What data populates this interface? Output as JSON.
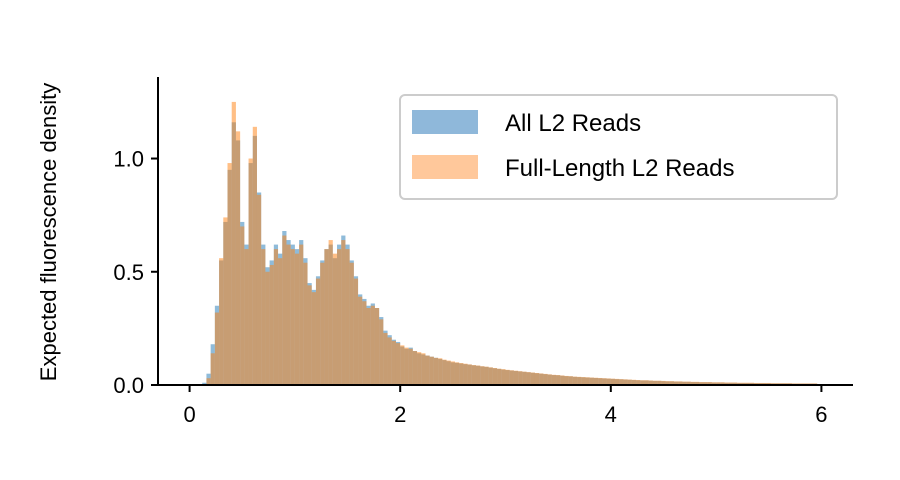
{
  "chart_data": {
    "type": "histogram",
    "title": "",
    "xlabel": "",
    "ylabel": "Expected fluorescence density",
    "xlim": [
      -0.3,
      6.3
    ],
    "ylim": [
      0,
      1.36
    ],
    "xticks": [
      0,
      2,
      4,
      6
    ],
    "xtick_labels": [
      "0",
      "2",
      "4",
      "6"
    ],
    "yticks": [
      0,
      0.5,
      1.0
    ],
    "ytick_labels": [
      "0.0",
      "0.5",
      "1.0"
    ],
    "grid": false,
    "legend_position": "top-right",
    "legend": [
      "All L2 Reads",
      "Full-Length L2 Reads"
    ],
    "colors": {
      "all": "#1f77b4",
      "full": "#ff7f0e",
      "overlap": "#b79e84",
      "legend_all": "#8fb8da",
      "legend_full": "#ffc89b"
    },
    "bin_width": 0.04,
    "series": [
      {
        "name": "All L2 Reads",
        "x": [
          0.14,
          0.18,
          0.22,
          0.26,
          0.3,
          0.34,
          0.38,
          0.42,
          0.46,
          0.5,
          0.54,
          0.58,
          0.62,
          0.66,
          0.7,
          0.74,
          0.78,
          0.82,
          0.86,
          0.9,
          0.94,
          0.98,
          1.02,
          1.06,
          1.1,
          1.14,
          1.18,
          1.22,
          1.26,
          1.3,
          1.34,
          1.38,
          1.42,
          1.46,
          1.5,
          1.54,
          1.58,
          1.62,
          1.66,
          1.7,
          1.74,
          1.78,
          1.82,
          1.86,
          1.9,
          1.94,
          1.98,
          2.02,
          2.06,
          2.1,
          2.14,
          2.18,
          2.22,
          2.26,
          2.3,
          2.34,
          2.38,
          2.42,
          2.46,
          2.5,
          2.54,
          2.58,
          2.62,
          2.66,
          2.7,
          2.74,
          2.78,
          2.82,
          2.86,
          2.9,
          2.94,
          2.98,
          3.02,
          3.06,
          3.1,
          3.14,
          3.18,
          3.22,
          3.26,
          3.3,
          3.34,
          3.38,
          3.42,
          3.46,
          3.5,
          3.54,
          3.58,
          3.62,
          3.66,
          3.7,
          3.74,
          3.78,
          3.82,
          3.86,
          3.9,
          3.94,
          3.98,
          4.02,
          4.06,
          4.1,
          4.14,
          4.18,
          4.22,
          4.26,
          4.3,
          4.34,
          4.38,
          4.42,
          4.46,
          4.5,
          4.54,
          4.58,
          4.62,
          4.66,
          4.7,
          4.74,
          4.78,
          4.82,
          4.86,
          4.9,
          4.94,
          4.98,
          5.02,
          5.06,
          5.1,
          5.14,
          5.18,
          5.22,
          5.26,
          5.3,
          5.34,
          5.38,
          5.42,
          5.46,
          5.5,
          5.54,
          5.58,
          5.62,
          5.66,
          5.7,
          5.74,
          5.78,
          5.82,
          5.86,
          5.9,
          5.94,
          5.98
        ],
        "values": [
          0.01,
          0.05,
          0.18,
          0.35,
          0.55,
          0.72,
          0.95,
          1.16,
          1.08,
          0.72,
          0.62,
          0.98,
          1.1,
          0.85,
          0.62,
          0.52,
          0.55,
          0.62,
          0.58,
          0.68,
          0.64,
          0.62,
          0.6,
          0.64,
          0.56,
          0.45,
          0.42,
          0.48,
          0.55,
          0.6,
          0.62,
          0.56,
          0.62,
          0.66,
          0.62,
          0.55,
          0.48,
          0.4,
          0.38,
          0.35,
          0.36,
          0.34,
          0.3,
          0.24,
          0.22,
          0.2,
          0.19,
          0.17,
          0.16,
          0.165,
          0.15,
          0.14,
          0.135,
          0.13,
          0.125,
          0.12,
          0.115,
          0.11,
          0.105,
          0.1,
          0.098,
          0.095,
          0.092,
          0.09,
          0.087,
          0.085,
          0.082,
          0.08,
          0.077,
          0.074,
          0.071,
          0.068,
          0.066,
          0.064,
          0.062,
          0.06,
          0.058,
          0.056,
          0.054,
          0.052,
          0.05,
          0.048,
          0.046,
          0.044,
          0.043,
          0.041,
          0.039,
          0.038,
          0.036,
          0.035,
          0.034,
          0.033,
          0.032,
          0.031,
          0.03,
          0.029,
          0.028,
          0.027,
          0.026,
          0.025,
          0.024,
          0.023,
          0.022,
          0.021,
          0.02,
          0.02,
          0.019,
          0.018,
          0.018,
          0.017,
          0.016,
          0.016,
          0.015,
          0.015,
          0.014,
          0.014,
          0.013,
          0.013,
          0.012,
          0.012,
          0.012,
          0.011,
          0.011,
          0.011,
          0.01,
          0.01,
          0.01,
          0.009,
          0.009,
          0.009,
          0.009,
          0.008,
          0.008,
          0.008,
          0.008,
          0.007,
          0.007,
          0.007,
          0.007,
          0.007,
          0.006,
          0.006,
          0.006,
          0.006,
          0.006,
          0.006
        ]
      },
      {
        "name": "Full-Length L2 Reads",
        "x": [
          0.14,
          0.18,
          0.22,
          0.26,
          0.3,
          0.34,
          0.38,
          0.42,
          0.46,
          0.5,
          0.54,
          0.58,
          0.62,
          0.66,
          0.7,
          0.74,
          0.78,
          0.82,
          0.86,
          0.9,
          0.94,
          0.98,
          1.02,
          1.06,
          1.1,
          1.14,
          1.18,
          1.22,
          1.26,
          1.3,
          1.34,
          1.38,
          1.42,
          1.46,
          1.5,
          1.54,
          1.58,
          1.62,
          1.66,
          1.7,
          1.74,
          1.78,
          1.82,
          1.86,
          1.9,
          1.94,
          1.98,
          2.02,
          2.06,
          2.1,
          2.14,
          2.18,
          2.22,
          2.26,
          2.3,
          2.34,
          2.38,
          2.42,
          2.46,
          2.5,
          2.54,
          2.58,
          2.62,
          2.66,
          2.7,
          2.74,
          2.78,
          2.82,
          2.86,
          2.9,
          2.94,
          2.98,
          3.02,
          3.06,
          3.1,
          3.14,
          3.18,
          3.22,
          3.26,
          3.3,
          3.34,
          3.38,
          3.42,
          3.46,
          3.5,
          3.54,
          3.58,
          3.62,
          3.66,
          3.7,
          3.74,
          3.78,
          3.82,
          3.86,
          3.9,
          3.94,
          3.98,
          4.02,
          4.06,
          4.1,
          4.14,
          4.18,
          4.22,
          4.26,
          4.3,
          4.34,
          4.38,
          4.42,
          4.46,
          4.5,
          4.54,
          4.58,
          4.62,
          4.66,
          4.7,
          4.74,
          4.78,
          4.82,
          4.86,
          4.9,
          4.94,
          4.98,
          5.02,
          5.06,
          5.1,
          5.14,
          5.18,
          5.22,
          5.26,
          5.3,
          5.34,
          5.38,
          5.42,
          5.46,
          5.5,
          5.54,
          5.58,
          5.62,
          5.66,
          5.7,
          5.74,
          5.78,
          5.82,
          5.86,
          5.9,
          5.94,
          5.98
        ],
        "values": [
          0.0,
          0.03,
          0.14,
          0.32,
          0.56,
          0.74,
          0.98,
          1.25,
          1.12,
          0.7,
          0.6,
          1.0,
          1.14,
          0.84,
          0.6,
          0.5,
          0.53,
          0.6,
          0.56,
          0.66,
          0.62,
          0.6,
          0.58,
          0.62,
          0.54,
          0.44,
          0.41,
          0.47,
          0.54,
          0.6,
          0.64,
          0.58,
          0.6,
          0.64,
          0.6,
          0.54,
          0.47,
          0.39,
          0.37,
          0.34,
          0.35,
          0.34,
          0.29,
          0.23,
          0.21,
          0.195,
          0.185,
          0.175,
          0.165,
          0.16,
          0.15,
          0.145,
          0.14,
          0.13,
          0.125,
          0.12,
          0.118,
          0.112,
          0.108,
          0.104,
          0.1,
          0.097,
          0.094,
          0.091,
          0.088,
          0.086,
          0.083,
          0.081,
          0.078,
          0.075,
          0.072,
          0.07,
          0.067,
          0.065,
          0.063,
          0.061,
          0.059,
          0.057,
          0.055,
          0.053,
          0.051,
          0.049,
          0.047,
          0.045,
          0.044,
          0.042,
          0.04,
          0.039,
          0.037,
          0.036,
          0.035,
          0.034,
          0.033,
          0.032,
          0.031,
          0.03,
          0.029,
          0.028,
          0.027,
          0.026,
          0.025,
          0.024,
          0.023,
          0.022,
          0.021,
          0.021,
          0.02,
          0.019,
          0.019,
          0.018,
          0.017,
          0.017,
          0.016,
          0.016,
          0.015,
          0.015,
          0.014,
          0.014,
          0.013,
          0.013,
          0.013,
          0.012,
          0.012,
          0.012,
          0.011,
          0.011,
          0.011,
          0.01,
          0.01,
          0.01,
          0.01,
          0.009,
          0.009,
          0.009,
          0.009,
          0.008,
          0.008,
          0.008,
          0.008,
          0.008,
          0.007,
          0.007,
          0.007,
          0.007,
          0.007,
          0.007
        ]
      }
    ]
  }
}
